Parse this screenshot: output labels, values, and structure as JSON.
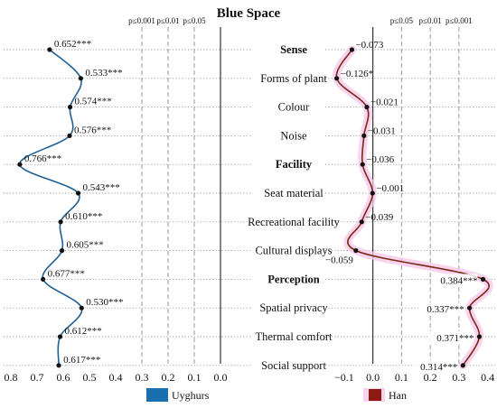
{
  "chart_data": {
    "type": "line",
    "title": "Blue Space",
    "categories": [
      {
        "label": "Sense",
        "bold": true
      },
      {
        "label": "Forms of plant",
        "bold": false
      },
      {
        "label": "Colour",
        "bold": false
      },
      {
        "label": "Noise",
        "bold": false
      },
      {
        "label": "Facility",
        "bold": true
      },
      {
        "label": "Seat material",
        "bold": false
      },
      {
        "label": "Recreational facility",
        "bold": false
      },
      {
        "label": "Cultural displays",
        "bold": false
      },
      {
        "label": "Perception",
        "bold": true
      },
      {
        "label": "Spatial privacy",
        "bold": false
      },
      {
        "label": "Thermal comfort",
        "bold": false
      },
      {
        "label": "Social support",
        "bold": false
      }
    ],
    "series": [
      {
        "name": "Uyghurs",
        "color": "#1a6fb0",
        "line_color": "#1f5f96",
        "values": [
          0.652,
          0.533,
          0.574,
          0.576,
          0.766,
          0.543,
          0.61,
          0.605,
          0.677,
          0.53,
          0.612,
          0.617
        ],
        "labels": [
          "0.652***",
          "0.533***",
          "0.574***",
          "0.576***",
          "0.766***",
          "0.543***",
          "0.610***",
          "0.605***",
          "0.677***",
          "0.530***",
          "0.612***",
          "0.617***"
        ],
        "xlim": [
          0.8,
          0.0
        ],
        "ticks": [
          "0.8",
          "0.7",
          "0.6",
          "0.5",
          "0.4",
          "0.3",
          "0.2",
          "0.1",
          "0.0"
        ],
        "thresholds": [
          {
            "value": 0.3,
            "label": "p≤0.001"
          },
          {
            "value": 0.2,
            "label": "p≤0.01"
          },
          {
            "value": 0.1,
            "label": "p≤0.05"
          }
        ]
      },
      {
        "name": "Han",
        "color": "#8b1a10",
        "line_color": "#7a2a14",
        "values": [
          -0.073,
          -0.126,
          -0.021,
          -0.031,
          -0.036,
          -0.001,
          -0.039,
          -0.059,
          0.384,
          0.337,
          0.371,
          0.314
        ],
        "labels": [
          "−0.073",
          "−0.126*",
          "−0.021",
          "−0.031",
          "−0.036",
          "−0.001",
          "−0.039",
          "−0.059",
          "0.384***",
          "0.337***",
          "0.371***",
          "0.314***"
        ],
        "xlim": [
          -0.15,
          0.42
        ],
        "ticks": [
          "−0.1",
          "0.0",
          "0.1",
          "0.2",
          "0.3",
          "0.4"
        ],
        "tick_values": [
          -0.1,
          0.0,
          0.1,
          0.2,
          0.3,
          0.4
        ],
        "thresholds": [
          {
            "value": 0.1,
            "label": "p≤0.05"
          },
          {
            "value": 0.2,
            "label": "p≤0.01"
          },
          {
            "value": 0.3,
            "label": "p≤0.001"
          }
        ]
      }
    ],
    "legend": [
      "Uyghurs",
      "Han"
    ],
    "legend_placement": "bottom"
  }
}
